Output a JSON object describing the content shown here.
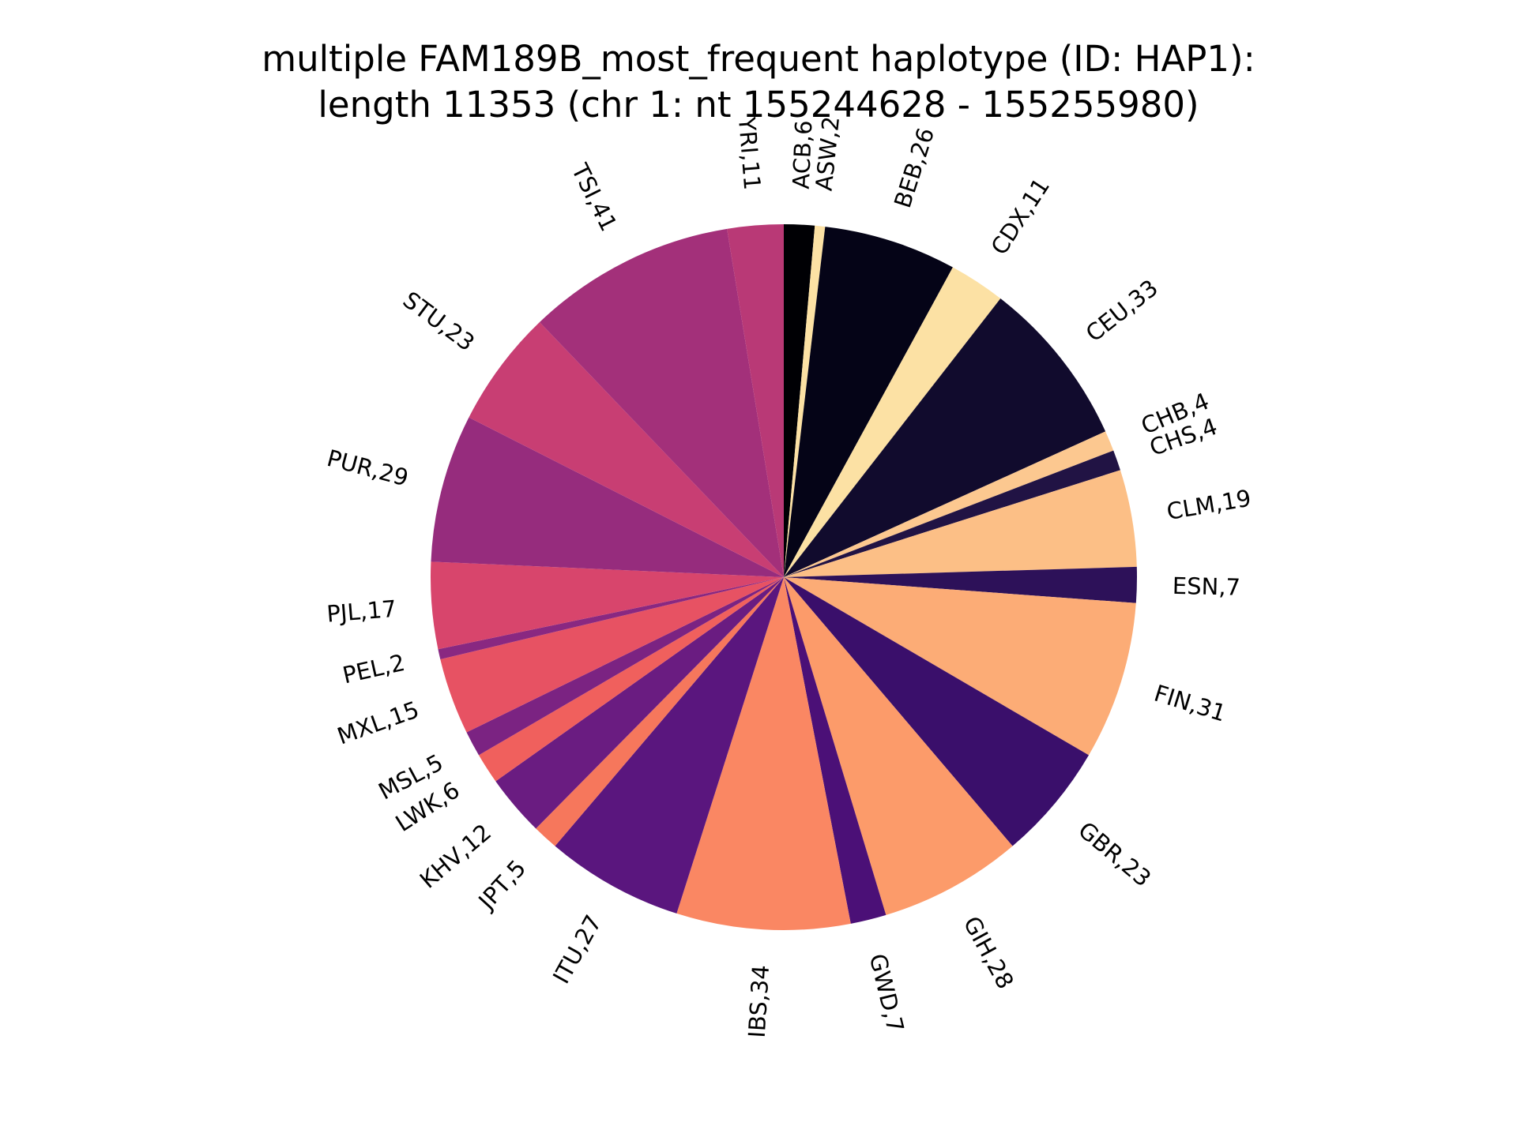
{
  "title": {
    "line1": "multiple FAM189B_most_frequent haplotype (ID: HAP1):",
    "line2": "length 11353 (chr 1: nt 155244628 - 155255980)"
  },
  "chart_data": {
    "type": "pie",
    "title": "multiple FAM189B_most_frequent haplotype (ID: HAP1): length 11353 (chr 1: nt 155244628 - 155255980)",
    "start_angle": "top (90°)",
    "direction": "clockwise",
    "slices": [
      {
        "label": "ACB",
        "value": 6,
        "text": "ACB,6",
        "color": "#000004"
      },
      {
        "label": "ASW",
        "value": 2,
        "text": "ASW,2",
        "color": "#fce1a4"
      },
      {
        "label": "BEB",
        "value": 26,
        "text": "BEB,26",
        "color": "#050417"
      },
      {
        "label": "CDX",
        "value": 11,
        "text": "CDX,11",
        "color": "#fce1a4"
      },
      {
        "label": "CEU",
        "value": 33,
        "text": "CEU,33",
        "color": "#110b2d"
      },
      {
        "label": "CHB",
        "value": 4,
        "text": "CHB,4",
        "color": "#fcc890"
      },
      {
        "label": "CHS",
        "value": 4,
        "text": "CHS,4",
        "color": "#211344"
      },
      {
        "label": "CLM",
        "value": 19,
        "text": "CLM,19",
        "color": "#fcbf86"
      },
      {
        "label": "ESN",
        "value": 7,
        "text": "ESN,7",
        "color": "#2d1159"
      },
      {
        "label": "FIN",
        "value": 31,
        "text": "FIN,31",
        "color": "#fcac76"
      },
      {
        "label": "GBR",
        "value": 23,
        "text": "GBR,23",
        "color": "#3a0f6b"
      },
      {
        "label": "GIH",
        "value": 28,
        "text": "GIH,28",
        "color": "#fc9b6a"
      },
      {
        "label": "GWD",
        "value": 7,
        "text": "GWD,7",
        "color": "#4b1077"
      },
      {
        "label": "IBS",
        "value": 34,
        "text": "IBS,34",
        "color": "#fa8763"
      },
      {
        "label": "ITU",
        "value": 27,
        "text": "ITU,27",
        "color": "#5a167e"
      },
      {
        "label": "JPT",
        "value": 5,
        "text": "JPT,5",
        "color": "#f6775c"
      },
      {
        "label": "KHV",
        "value": 12,
        "text": "KHV,12",
        "color": "#6a1c81"
      },
      {
        "label": "LWK",
        "value": 6,
        "text": "LWK,6",
        "color": "#f0605d"
      },
      {
        "label": "MSL",
        "value": 5,
        "text": "MSL,5",
        "color": "#7b2382"
      },
      {
        "label": "MXL",
        "value": 15,
        "text": "MXL,15",
        "color": "#e75263"
      },
      {
        "label": "PEL",
        "value": 2,
        "text": "PEL,2",
        "color": "#892881"
      },
      {
        "label": "PJL",
        "value": 17,
        "text": "PJL,17",
        "color": "#d8456c"
      },
      {
        "label": "PUR",
        "value": 29,
        "text": "PUR,29",
        "color": "#962c7d"
      },
      {
        "label": "STU",
        "value": 23,
        "text": "STU,23",
        "color": "#c83e73"
      },
      {
        "label": "TSI",
        "value": 41,
        "text": "TSI,41",
        "color": "#a3307a"
      },
      {
        "label": "YRI",
        "value": 11,
        "text": "YRI,11",
        "color": "#b93976"
      }
    ]
  }
}
